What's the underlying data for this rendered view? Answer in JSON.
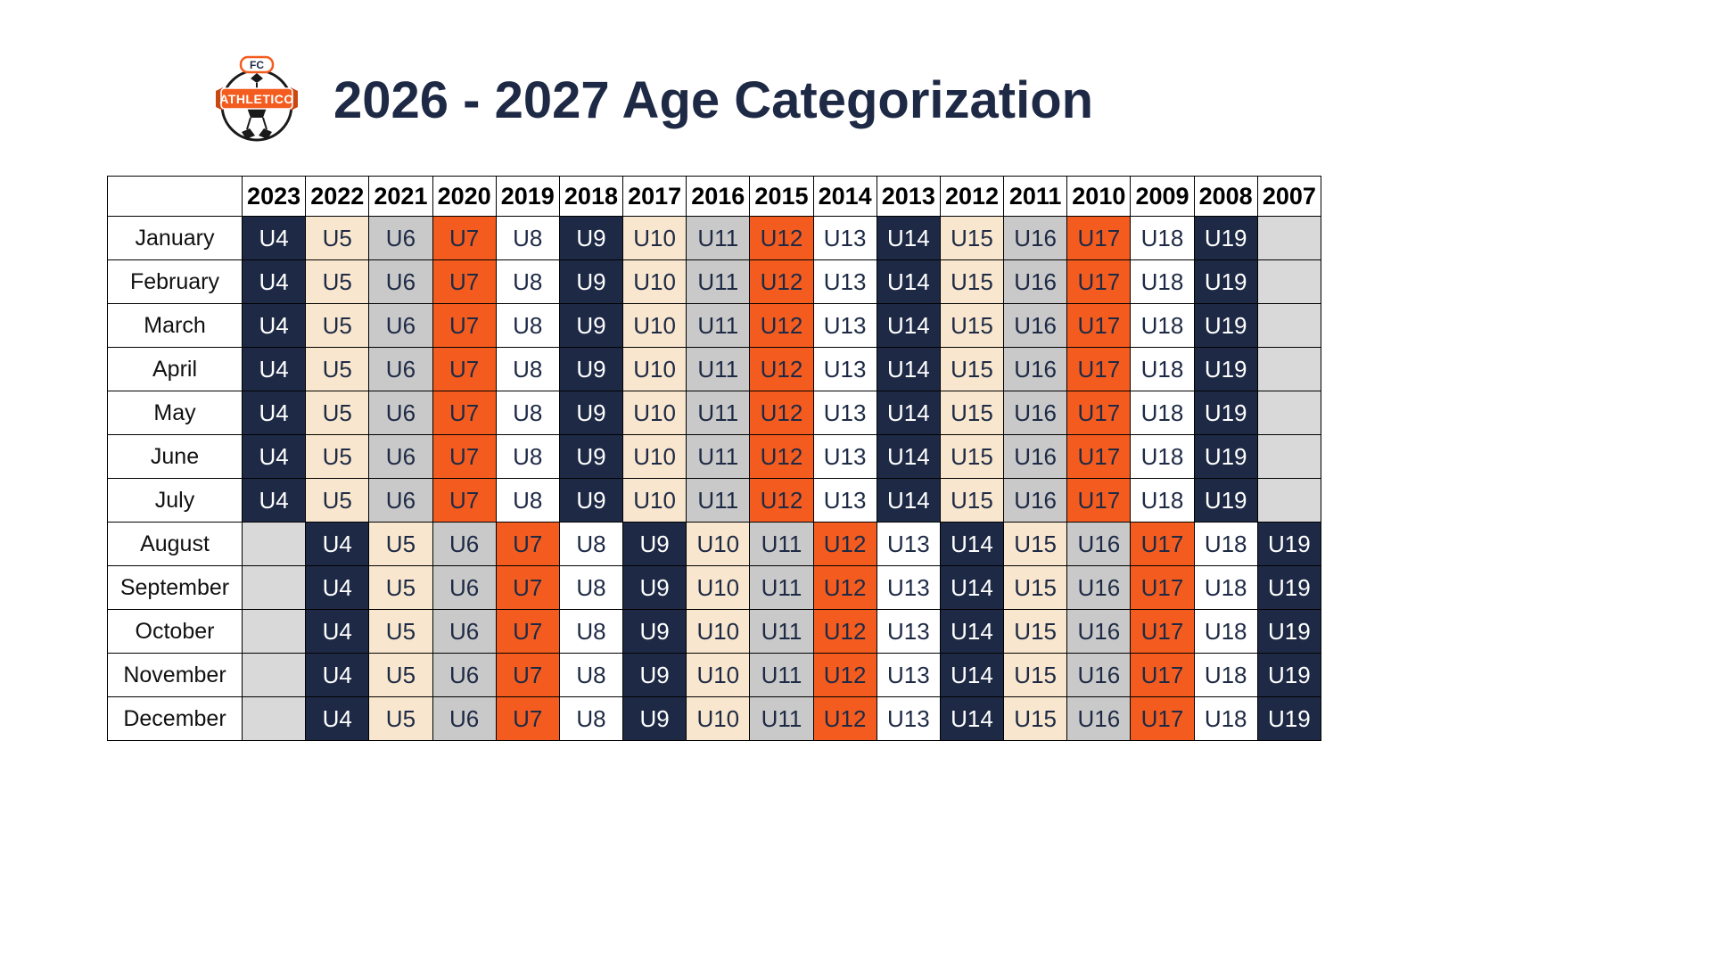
{
  "header": {
    "title": "2026 - 2027 Age Categorization"
  },
  "logo": {
    "top_text": "FC",
    "banner_text": "ATHLETICO"
  },
  "palette": {
    "navy": {
      "bg": "#1e2a45",
      "text": "#ffffff"
    },
    "cream": {
      "bg": "#f8e7ce",
      "text": "#1e2a45"
    },
    "gray": {
      "bg": "#c9c9c9",
      "text": "#1e2a45"
    },
    "orange": {
      "bg": "#f45c1f",
      "text": "#1e2a45"
    },
    "white": {
      "bg": "#ffffff",
      "text": "#1e2a45"
    },
    "empty": {
      "bg": "#d9d9d9",
      "text": "#1e2a45"
    }
  },
  "age_colors": {
    "U4": "navy",
    "U5": "cream",
    "U6": "gray",
    "U7": "orange",
    "U8": "white",
    "U9": "navy",
    "U10": "cream",
    "U11": "gray",
    "U12": "orange",
    "U13": "white",
    "U14": "navy",
    "U15": "cream",
    "U16": "gray",
    "U17": "orange",
    "U18": "white",
    "U19": "navy"
  },
  "table": {
    "year_headers": [
      "2023",
      "2022",
      "2021",
      "2020",
      "2019",
      "2018",
      "2017",
      "2016",
      "2015",
      "2014",
      "2013",
      "2012",
      "2011",
      "2010",
      "2009",
      "2008",
      "2007"
    ],
    "rows": [
      {
        "month": "January",
        "cells": [
          "U4",
          "U5",
          "U6",
          "U7",
          "U8",
          "U9",
          "U10",
          "U11",
          "U12",
          "U13",
          "U14",
          "U15",
          "U16",
          "U17",
          "U18",
          "U19",
          ""
        ]
      },
      {
        "month": "February",
        "cells": [
          "U4",
          "U5",
          "U6",
          "U7",
          "U8",
          "U9",
          "U10",
          "U11",
          "U12",
          "U13",
          "U14",
          "U15",
          "U16",
          "U17",
          "U18",
          "U19",
          ""
        ]
      },
      {
        "month": "March",
        "cells": [
          "U4",
          "U5",
          "U6",
          "U7",
          "U8",
          "U9",
          "U10",
          "U11",
          "U12",
          "U13",
          "U14",
          "U15",
          "U16",
          "U17",
          "U18",
          "U19",
          ""
        ]
      },
      {
        "month": "April",
        "cells": [
          "U4",
          "U5",
          "U6",
          "U7",
          "U8",
          "U9",
          "U10",
          "U11",
          "U12",
          "U13",
          "U14",
          "U15",
          "U16",
          "U17",
          "U18",
          "U19",
          ""
        ]
      },
      {
        "month": "May",
        "cells": [
          "U4",
          "U5",
          "U6",
          "U7",
          "U8",
          "U9",
          "U10",
          "U11",
          "U12",
          "U13",
          "U14",
          "U15",
          "U16",
          "U17",
          "U18",
          "U19",
          ""
        ]
      },
      {
        "month": "June",
        "cells": [
          "U4",
          "U5",
          "U6",
          "U7",
          "U8",
          "U9",
          "U10",
          "U11",
          "U12",
          "U13",
          "U14",
          "U15",
          "U16",
          "U17",
          "U18",
          "U19",
          ""
        ]
      },
      {
        "month": "July",
        "cells": [
          "U4",
          "U5",
          "U6",
          "U7",
          "U8",
          "U9",
          "U10",
          "U11",
          "U12",
          "U13",
          "U14",
          "U15",
          "U16",
          "U17",
          "U18",
          "U19",
          ""
        ]
      },
      {
        "month": "August",
        "cells": [
          "",
          "U4",
          "U5",
          "U6",
          "U7",
          "U8",
          "U9",
          "U10",
          "U11",
          "U12",
          "U13",
          "U14",
          "U15",
          "U16",
          "U17",
          "U18",
          "U19"
        ]
      },
      {
        "month": "September",
        "cells": [
          "",
          "U4",
          "U5",
          "U6",
          "U7",
          "U8",
          "U9",
          "U10",
          "U11",
          "U12",
          "U13",
          "U14",
          "U15",
          "U16",
          "U17",
          "U18",
          "U19"
        ]
      },
      {
        "month": "October",
        "cells": [
          "",
          "U4",
          "U5",
          "U6",
          "U7",
          "U8",
          "U9",
          "U10",
          "U11",
          "U12",
          "U13",
          "U14",
          "U15",
          "U16",
          "U17",
          "U18",
          "U19"
        ]
      },
      {
        "month": "November",
        "cells": [
          "",
          "U4",
          "U5",
          "U6",
          "U7",
          "U8",
          "U9",
          "U10",
          "U11",
          "U12",
          "U13",
          "U14",
          "U15",
          "U16",
          "U17",
          "U18",
          "U19"
        ]
      },
      {
        "month": "December",
        "cells": [
          "",
          "U4",
          "U5",
          "U6",
          "U7",
          "U8",
          "U9",
          "U10",
          "U11",
          "U12",
          "U13",
          "U14",
          "U15",
          "U16",
          "U17",
          "U18",
          "U19"
        ]
      }
    ]
  }
}
